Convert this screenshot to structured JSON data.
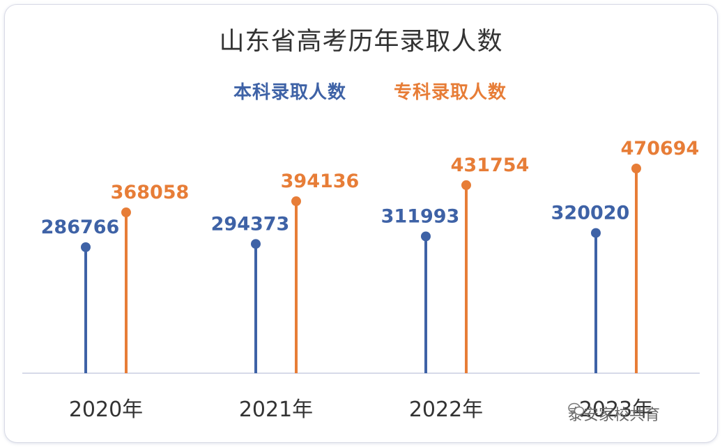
{
  "chart_data": {
    "type": "lollipop",
    "title": "山东省高考历年录取人数",
    "categories": [
      "2020年",
      "2021年",
      "2022年",
      "2023年"
    ],
    "series": [
      {
        "name": "本科录取人数",
        "color": "#3e62a6",
        "values": [
          286766,
          294373,
          311993,
          320020
        ]
      },
      {
        "name": "专科录取人数",
        "color": "#e77d37",
        "values": [
          368058,
          394136,
          431754,
          470694
        ]
      }
    ],
    "ylim": [
      0,
      800000
    ],
    "grid": false,
    "legend_position": "top-center"
  },
  "watermark": {
    "text": "泰安家校共育",
    "icon": "wechat-icon"
  }
}
